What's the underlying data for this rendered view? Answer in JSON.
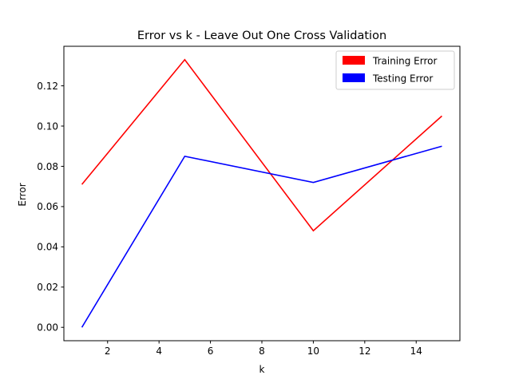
{
  "chart_data": {
    "type": "line",
    "title": "Error vs k - Leave Out One Cross Validation",
    "xlabel": "k",
    "ylabel": "Error",
    "x": [
      1,
      5,
      10,
      15
    ],
    "series": [
      {
        "name": "Training Error",
        "color": "#ff0000",
        "values": [
          0.071,
          0.133,
          0.048,
          0.105
        ]
      },
      {
        "name": "Testing Error",
        "color": "#0000ff",
        "values": [
          0.0,
          0.085,
          0.072,
          0.09
        ]
      }
    ],
    "xlim": [
      0.3,
      15.7
    ],
    "ylim": [
      -0.00665,
      0.13965
    ],
    "xticks": [
      2,
      4,
      6,
      8,
      10,
      12,
      14
    ],
    "xtick_labels": [
      "2",
      "4",
      "6",
      "8",
      "10",
      "12",
      "14"
    ],
    "yticks": [
      0.0,
      0.02,
      0.04,
      0.06,
      0.08,
      0.1,
      0.12
    ],
    "ytick_labels": [
      "0.00",
      "0.02",
      "0.04",
      "0.06",
      "0.08",
      "0.10",
      "0.12"
    ],
    "grid": false,
    "legend_position": "upper right"
  }
}
